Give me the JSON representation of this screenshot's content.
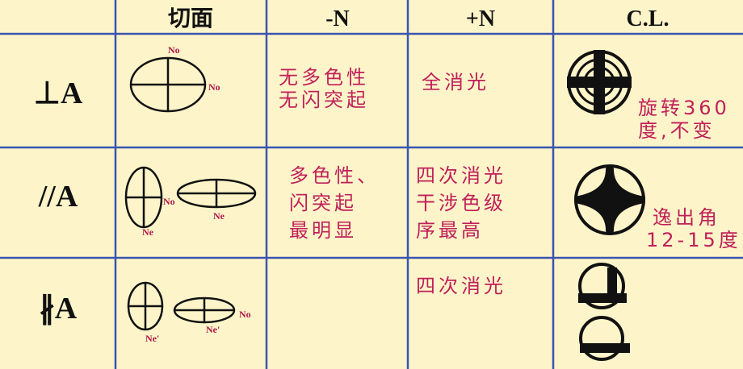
{
  "table": {
    "header": [
      "切面",
      "-N",
      "+N",
      "C.L."
    ],
    "rows": [
      {
        "label": "⊥A",
        "section_labels": [
          "No",
          "No"
        ],
        "minus_n": [
          "无多色性",
          "无闪突起"
        ],
        "plus_n": [
          "全消光"
        ],
        "cl": [
          "旋转360",
          "度,不变"
        ]
      },
      {
        "label": "//A",
        "section_labels": [
          "No",
          "Ne",
          "Ne"
        ],
        "minus_n": [
          "多色性、",
          "闪突起",
          "最明显"
        ],
        "plus_n": [
          "四次消光",
          "干涉色级",
          "序最高"
        ],
        "cl": [
          "逸出角",
          "12-15度"
        ]
      },
      {
        "label": "∦A",
        "section_labels": [
          "Ne'",
          "Ne'",
          "No"
        ],
        "plus_n": [
          "四次消光"
        ]
      }
    ]
  }
}
